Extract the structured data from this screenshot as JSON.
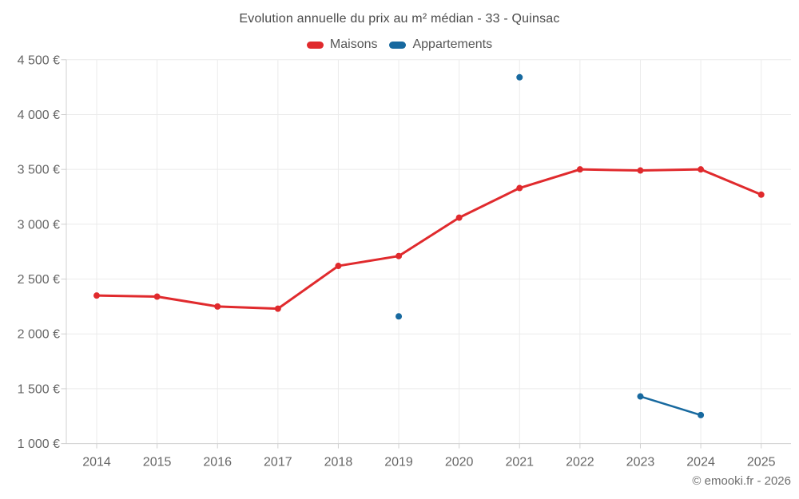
{
  "title": "Evolution annuelle du prix au m² médian - 33 - Quinsac",
  "copyright": "© emooki.fr - 2026",
  "colors": {
    "maisons": "#e02a2d",
    "appartements": "#17699f",
    "gridline": "#ebebeb",
    "axis": "#d0d0d0",
    "tick_label": "#666666"
  },
  "chart_data": {
    "type": "line",
    "title": "Evolution annuelle du prix au m² médian - 33 - Quinsac",
    "categories": [
      "2014",
      "2015",
      "2016",
      "2017",
      "2018",
      "2019",
      "2020",
      "2021",
      "2022",
      "2023",
      "2024",
      "2025"
    ],
    "series": [
      {
        "name": "Maisons",
        "color": "#e02a2d",
        "values": [
          2350,
          2340,
          2250,
          2230,
          2620,
          2710,
          3060,
          3330,
          3500,
          3490,
          3500,
          3270
        ]
      },
      {
        "name": "Appartements",
        "color": "#17699f",
        "values": [
          null,
          null,
          null,
          null,
          null,
          2160,
          null,
          4340,
          null,
          1430,
          1260,
          null
        ]
      }
    ],
    "xlabel": "",
    "ylabel": "",
    "ylim": [
      1000,
      4500
    ],
    "ytick_step": 500,
    "ytick_suffix": " €",
    "grid": true,
    "legend_position": "top"
  }
}
